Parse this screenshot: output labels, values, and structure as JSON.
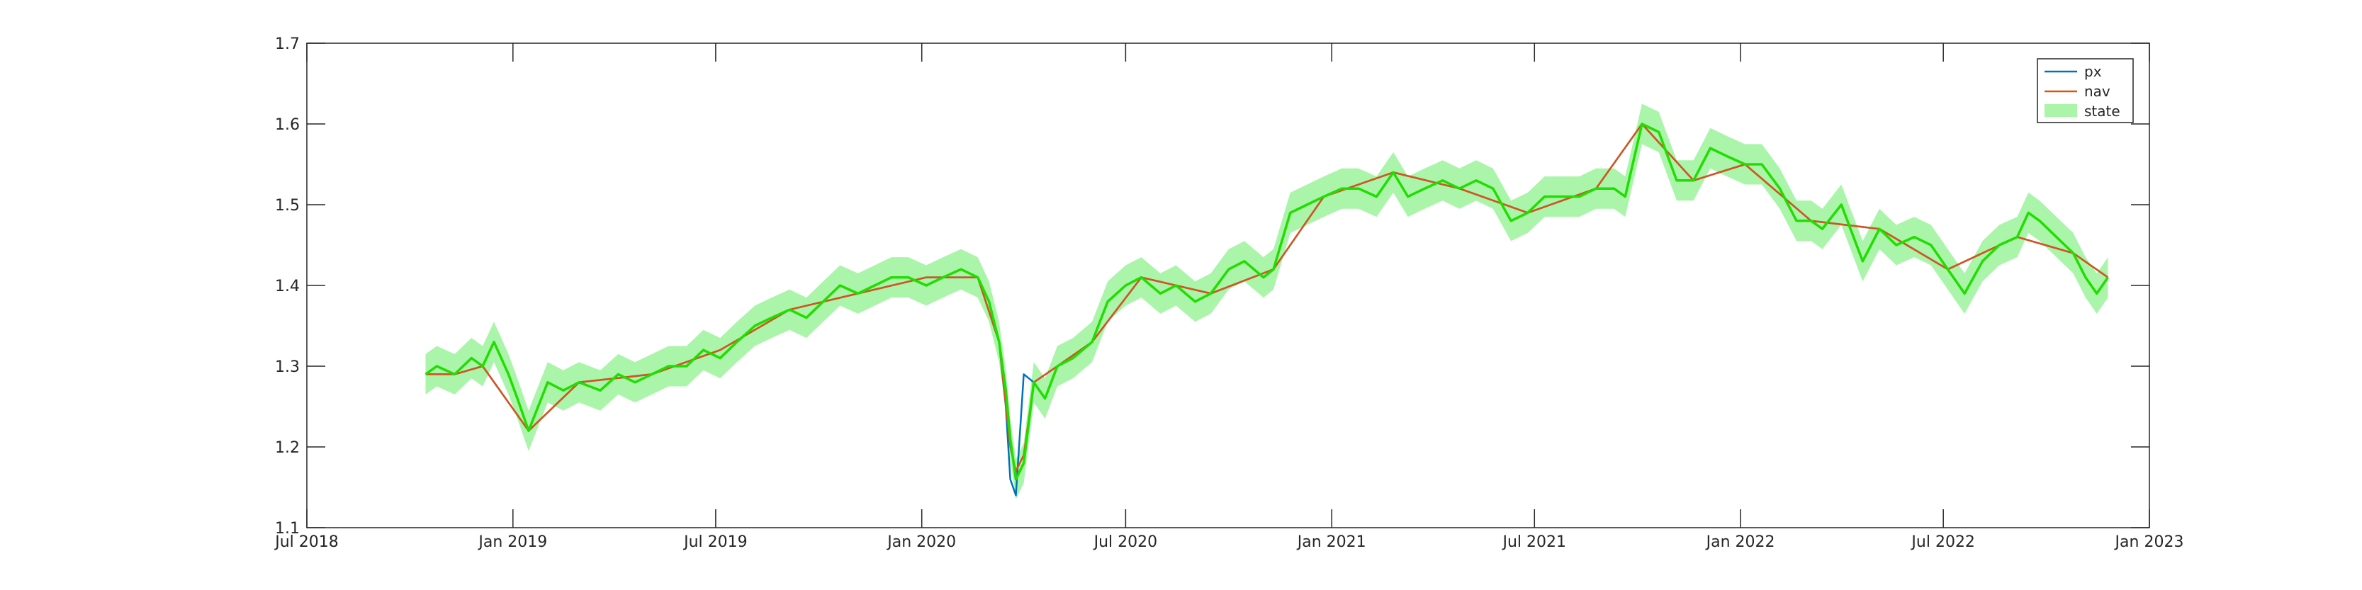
{
  "chart_data": {
    "type": "line",
    "title": "",
    "xlabel": "",
    "ylabel": "",
    "xlim": [
      "2018-07-01",
      "2023-01-01"
    ],
    "ylim": [
      1.1,
      1.7
    ],
    "x_ticks": [
      "Jul 2018",
      "Jan 2019",
      "Jul 2019",
      "Jan 2020",
      "Jul 2020",
      "Jan 2021",
      "Jul 2021",
      "Jan 2022",
      "Jul 2022",
      "Jan 2023"
    ],
    "y_ticks": [
      "1.1",
      "1.2",
      "1.3",
      "1.4",
      "1.5",
      "1.6",
      "1.7"
    ],
    "grid": false,
    "legend_position": "top-right",
    "legend": [
      "px",
      "nav",
      "state"
    ],
    "colors": {
      "px": "#0072BD",
      "nav": "#D95319",
      "state_line": "#22dd00",
      "state_band": "#aaf5aa"
    },
    "band_halfwidth": 0.025,
    "series": [
      {
        "name": "state",
        "x": [
          "2018-10-15",
          "2018-10-25",
          "2018-11-10",
          "2018-11-25",
          "2018-12-05",
          "2018-12-15",
          "2018-12-28",
          "2019-01-05",
          "2019-01-15",
          "2019-02-01",
          "2019-02-15",
          "2019-03-01",
          "2019-03-20",
          "2019-04-05",
          "2019-04-20",
          "2019-05-05",
          "2019-05-20",
          "2019-06-05",
          "2019-06-20",
          "2019-07-05",
          "2019-07-20",
          "2019-08-05",
          "2019-08-20",
          "2019-09-05",
          "2019-09-20",
          "2019-10-05",
          "2019-10-20",
          "2019-11-05",
          "2019-11-20",
          "2019-12-05",
          "2019-12-20",
          "2020-01-05",
          "2020-01-20",
          "2020-02-05",
          "2020-02-20",
          "2020-03-01",
          "2020-03-10",
          "2020-03-16",
          "2020-03-20",
          "2020-03-25",
          "2020-04-01",
          "2020-04-10",
          "2020-04-20",
          "2020-05-01",
          "2020-05-15",
          "2020-06-01",
          "2020-06-15",
          "2020-07-01",
          "2020-07-15",
          "2020-08-01",
          "2020-08-15",
          "2020-09-01",
          "2020-09-15",
          "2020-10-01",
          "2020-10-15",
          "2020-11-01",
          "2020-11-10",
          "2020-11-25",
          "2020-12-10",
          "2020-12-25",
          "2021-01-10",
          "2021-01-25",
          "2021-02-10",
          "2021-02-25",
          "2021-03-10",
          "2021-03-25",
          "2021-04-10",
          "2021-04-25",
          "2021-05-10",
          "2021-05-25",
          "2021-06-10",
          "2021-06-25",
          "2021-07-10",
          "2021-07-25",
          "2021-08-10",
          "2021-08-25",
          "2021-09-10",
          "2021-09-20",
          "2021-10-05",
          "2021-10-20",
          "2021-11-05",
          "2021-11-20",
          "2021-12-05",
          "2021-12-20",
          "2022-01-05",
          "2022-01-20",
          "2022-02-05",
          "2022-02-20",
          "2022-03-05",
          "2022-03-15",
          "2022-04-01",
          "2022-04-20",
          "2022-05-05",
          "2022-05-20",
          "2022-06-05",
          "2022-06-20",
          "2022-07-05",
          "2022-07-20",
          "2022-08-05",
          "2022-08-20",
          "2022-09-05",
          "2022-09-15",
          "2022-09-25",
          "2022-10-10",
          "2022-10-25",
          "2022-11-05",
          "2022-11-15",
          "2022-11-25"
        ],
        "values": [
          1.29,
          1.3,
          1.29,
          1.31,
          1.3,
          1.33,
          1.29,
          1.26,
          1.22,
          1.28,
          1.27,
          1.28,
          1.27,
          1.29,
          1.28,
          1.29,
          1.3,
          1.3,
          1.32,
          1.31,
          1.33,
          1.35,
          1.36,
          1.37,
          1.36,
          1.38,
          1.4,
          1.39,
          1.4,
          1.41,
          1.41,
          1.4,
          1.41,
          1.42,
          1.41,
          1.38,
          1.33,
          1.27,
          1.21,
          1.16,
          1.18,
          1.28,
          1.26,
          1.3,
          1.31,
          1.33,
          1.38,
          1.4,
          1.41,
          1.39,
          1.4,
          1.38,
          1.39,
          1.42,
          1.43,
          1.41,
          1.42,
          1.49,
          1.5,
          1.51,
          1.52,
          1.52,
          1.51,
          1.54,
          1.51,
          1.52,
          1.53,
          1.52,
          1.53,
          1.52,
          1.48,
          1.49,
          1.51,
          1.51,
          1.51,
          1.52,
          1.52,
          1.51,
          1.6,
          1.59,
          1.53,
          1.53,
          1.57,
          1.56,
          1.55,
          1.55,
          1.52,
          1.48,
          1.48,
          1.47,
          1.5,
          1.43,
          1.47,
          1.45,
          1.46,
          1.45,
          1.42,
          1.39,
          1.43,
          1.45,
          1.46,
          1.49,
          1.48,
          1.46,
          1.44,
          1.41,
          1.39,
          1.41
        ]
      },
      {
        "name": "nav",
        "x": [
          "2018-10-15",
          "2018-11-10",
          "2018-12-05",
          "2019-01-15",
          "2019-03-01",
          "2019-05-05",
          "2019-07-05",
          "2019-09-05",
          "2019-11-05",
          "2020-01-05",
          "2020-02-20",
          "2020-03-10",
          "2020-03-20",
          "2020-03-25",
          "2020-04-01",
          "2020-04-10",
          "2020-05-01",
          "2020-06-01",
          "2020-07-15",
          "2020-09-15",
          "2020-11-10",
          "2020-12-25",
          "2021-02-25",
          "2021-04-25",
          "2021-06-25",
          "2021-08-25",
          "2021-10-05",
          "2021-11-20",
          "2022-01-05",
          "2022-03-05",
          "2022-05-05",
          "2022-07-05",
          "2022-09-05",
          "2022-10-25",
          "2022-11-25"
        ],
        "values": [
          1.29,
          1.29,
          1.3,
          1.22,
          1.28,
          1.29,
          1.32,
          1.37,
          1.39,
          1.41,
          1.41,
          1.33,
          1.2,
          1.17,
          1.19,
          1.28,
          1.3,
          1.33,
          1.41,
          1.39,
          1.42,
          1.51,
          1.54,
          1.52,
          1.49,
          1.52,
          1.6,
          1.53,
          1.55,
          1.48,
          1.47,
          1.42,
          1.46,
          1.44,
          1.41
        ]
      },
      {
        "name": "px",
        "x": [
          "2018-10-15",
          "2018-11-10",
          "2018-12-05",
          "2019-01-15",
          "2019-03-01",
          "2019-05-05",
          "2019-07-05",
          "2019-09-05",
          "2019-11-05",
          "2020-01-05",
          "2020-02-20",
          "2020-03-10",
          "2020-03-16",
          "2020-03-20",
          "2020-03-25",
          "2020-04-01",
          "2020-04-10",
          "2020-05-01",
          "2020-06-01",
          "2020-07-15",
          "2020-09-15",
          "2020-11-10",
          "2020-12-25",
          "2021-02-25",
          "2021-04-25",
          "2021-06-25",
          "2021-08-25",
          "2021-10-05",
          "2021-11-20",
          "2022-01-05",
          "2022-03-05",
          "2022-05-05",
          "2022-07-05",
          "2022-09-05",
          "2022-10-25",
          "2022-11-25"
        ],
        "values": [
          1.29,
          1.29,
          1.3,
          1.22,
          1.28,
          1.29,
          1.32,
          1.37,
          1.39,
          1.41,
          1.41,
          1.33,
          1.25,
          1.16,
          1.14,
          1.29,
          1.28,
          1.3,
          1.33,
          1.41,
          1.39,
          1.42,
          1.51,
          1.54,
          1.52,
          1.49,
          1.52,
          1.6,
          1.53,
          1.55,
          1.48,
          1.47,
          1.42,
          1.46,
          1.44,
          1.41
        ]
      }
    ]
  }
}
